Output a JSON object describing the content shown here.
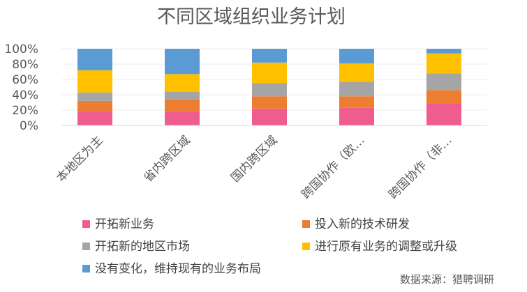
{
  "chart_data": {
    "type": "bar",
    "stacked": true,
    "title": "不同区域组织业务计划",
    "categories": [
      "本地区为主",
      "省内跨区域",
      "国内跨区域",
      "跨国协作（欧…",
      "跨国协作（非…"
    ],
    "ylim": [
      0,
      100
    ],
    "y_ticks": [
      "0%",
      "20%",
      "40%",
      "60%",
      "80%",
      "100%"
    ],
    "legend_position": "bottom",
    "series": [
      {
        "name": "开拓新业务",
        "color": "#EF5C8E",
        "values": [
          19,
          18,
          22,
          23,
          29
        ]
      },
      {
        "name": "投入新的技术研发",
        "color": "#ED7D31",
        "values": [
          13,
          16,
          16,
          15,
          17
        ]
      },
      {
        "name": "开拓新的地区市场",
        "color": "#A5A5A5",
        "values": [
          11,
          10,
          17,
          19,
          22
        ]
      },
      {
        "name": "进行原有业务的调整或升级",
        "color": "#FFC000",
        "values": [
          29,
          23,
          27,
          24,
          26
        ]
      },
      {
        "name": "没有变化，维持现有的业务布局",
        "color": "#5B9BD5",
        "values": [
          28,
          33,
          18,
          19,
          6
        ]
      }
    ]
  },
  "source": "数据来源：猎聘调研"
}
